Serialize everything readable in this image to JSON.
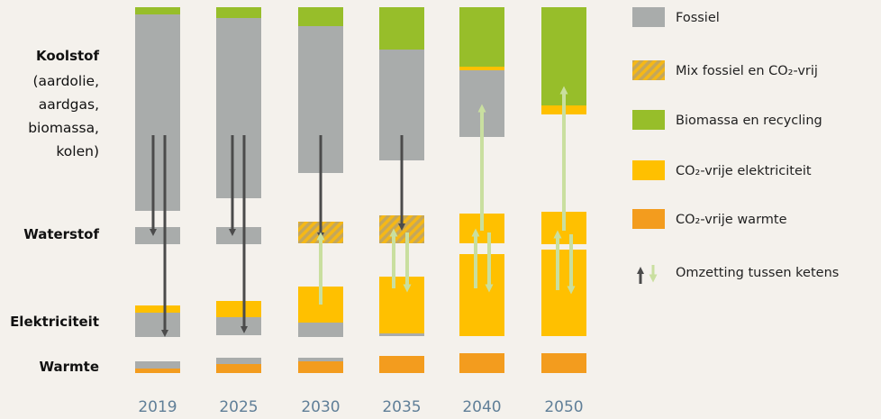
{
  "chart_data": {
    "type": "bar",
    "categories": [
      "2019",
      "2025",
      "2030",
      "2035",
      "2040",
      "2050"
    ],
    "rows": {
      "carbon": {
        "title": "Koolstof",
        "sub": [
          "(aardolie,",
          "aardgas,",
          "biomassa,",
          "kolen)"
        ]
      },
      "hydrogen": {
        "title": "Waterstof"
      },
      "electricity": {
        "title": "Elektriciteit"
      },
      "heat": {
        "title": "Warmte"
      }
    },
    "legend": [
      {
        "key": "fossil",
        "label": "Fossiel",
        "color": "#a9acab"
      },
      {
        "key": "mix",
        "label": "Mix fossiel en CO₂-vrij",
        "color": "#d9b04a"
      },
      {
        "key": "bio",
        "label": "Biomassa en recycling",
        "color": "#97be2a"
      },
      {
        "key": "elec",
        "label": "CO₂-vrije elektriciteit",
        "color": "#ffc000"
      },
      {
        "key": "heat",
        "label": "CO₂-vrije warmte",
        "color": "#f39c1e"
      },
      {
        "key": "conv",
        "label": "Omzetting tussen ketens",
        "color": "#c9df9f"
      }
    ],
    "colors": {
      "fossil": "#a9acab",
      "bio": "#97be2a",
      "elec": "#ffc000",
      "heat": "#f39c1e",
      "mix_a": "#c5a75a",
      "mix_b": "#f5b817",
      "arrow_dark": "#4b4b4b",
      "arrow_light": "#c9df9f"
    }
  }
}
